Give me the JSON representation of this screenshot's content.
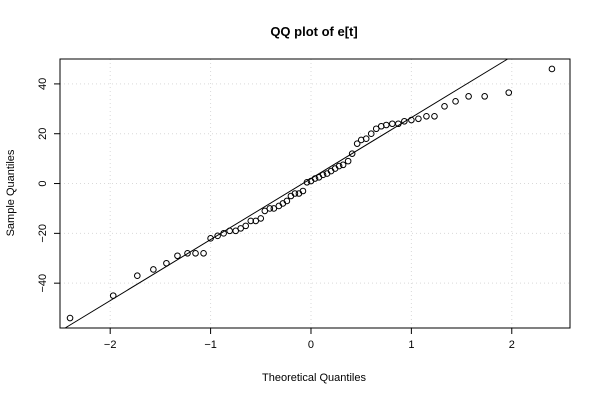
{
  "chart_data": {
    "type": "scatter",
    "title": "QQ plot of e[t]",
    "xlabel": "Theoretical Quantiles",
    "ylabel": "Sample Quantiles",
    "xlim": [
      -2.5,
      2.58
    ],
    "ylim": [
      -58,
      50
    ],
    "xticks": [
      -2,
      -1,
      0,
      1,
      2
    ],
    "xtick_labels": [
      "−2",
      "−1",
      "0",
      "1",
      "2"
    ],
    "yticks": [
      -40,
      -20,
      0,
      20,
      40
    ],
    "ytick_labels": [
      "−40",
      "−20",
      "0",
      "20",
      "40"
    ],
    "grid": true,
    "reference_line": {
      "intercept": 2,
      "slope": 24.5
    },
    "points": {
      "x": [
        -2.4,
        -1.97,
        -1.73,
        -1.57,
        -1.44,
        -1.33,
        -1.23,
        -1.15,
        -1.07,
        -1.0,
        -0.93,
        -0.87,
        -0.81,
        -0.75,
        -0.7,
        -0.65,
        -0.6,
        -0.55,
        -0.5,
        -0.46,
        -0.41,
        -0.37,
        -0.32,
        -0.28,
        -0.24,
        -0.2,
        -0.16,
        -0.12,
        -0.08,
        -0.04,
        0.0,
        0.04,
        0.08,
        0.12,
        0.16,
        0.2,
        0.24,
        0.28,
        0.32,
        0.37,
        0.41,
        0.46,
        0.5,
        0.55,
        0.6,
        0.65,
        0.7,
        0.75,
        0.81,
        0.87,
        0.93,
        1.0,
        1.07,
        1.15,
        1.23,
        1.33,
        1.44,
        1.57,
        1.73,
        1.97,
        2.4
      ],
      "y": [
        -54,
        -45,
        -37,
        -34.5,
        -32,
        -29,
        -28,
        -28,
        -28,
        -22,
        -21,
        -20,
        -19,
        -19,
        -18,
        -17,
        -15,
        -15,
        -14,
        -11,
        -10,
        -10,
        -9,
        -8,
        -7,
        -5,
        -4,
        -4,
        -3,
        0.5,
        1,
        2,
        2.5,
        3.5,
        4,
        5,
        6,
        7,
        7.5,
        9,
        12,
        16,
        17.5,
        18,
        20,
        22,
        23,
        23.5,
        24,
        24,
        25,
        25.5,
        26,
        27,
        27,
        31,
        33,
        35,
        35,
        36.5,
        46
      ]
    }
  }
}
